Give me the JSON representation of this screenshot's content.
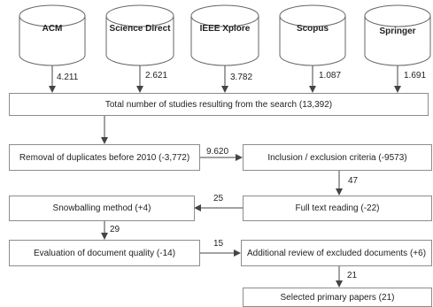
{
  "sources": [
    {
      "name": "ACM",
      "count": "4.211"
    },
    {
      "name": "Science Direct",
      "count": "2.621"
    },
    {
      "name": "IEEE Xplore",
      "count": "3.782"
    },
    {
      "name": "Scopus",
      "count": "1.087"
    },
    {
      "name": "Springer",
      "count": "1.691"
    }
  ],
  "boxes": {
    "total": "Total number of studies resulting from the search (13,392)",
    "duplicates": "Removal of duplicates before 2010 (-3,772)",
    "inclusion": "Inclusion / exclusion criteria (-9573)",
    "fulltext": "Full text reading (-22)",
    "snowballing": "Snowballing method (+4)",
    "quality": "Evaluation of document quality (-14)",
    "additional": "Additional review of excluded documents (+6)",
    "selected": "Selected primary papers (21)"
  },
  "flows": {
    "dup_to_incl": "9.620",
    "incl_to_full": "47",
    "full_to_snow": "25",
    "snow_to_qual": "29",
    "qual_to_add": "15",
    "add_to_sel": "21"
  }
}
